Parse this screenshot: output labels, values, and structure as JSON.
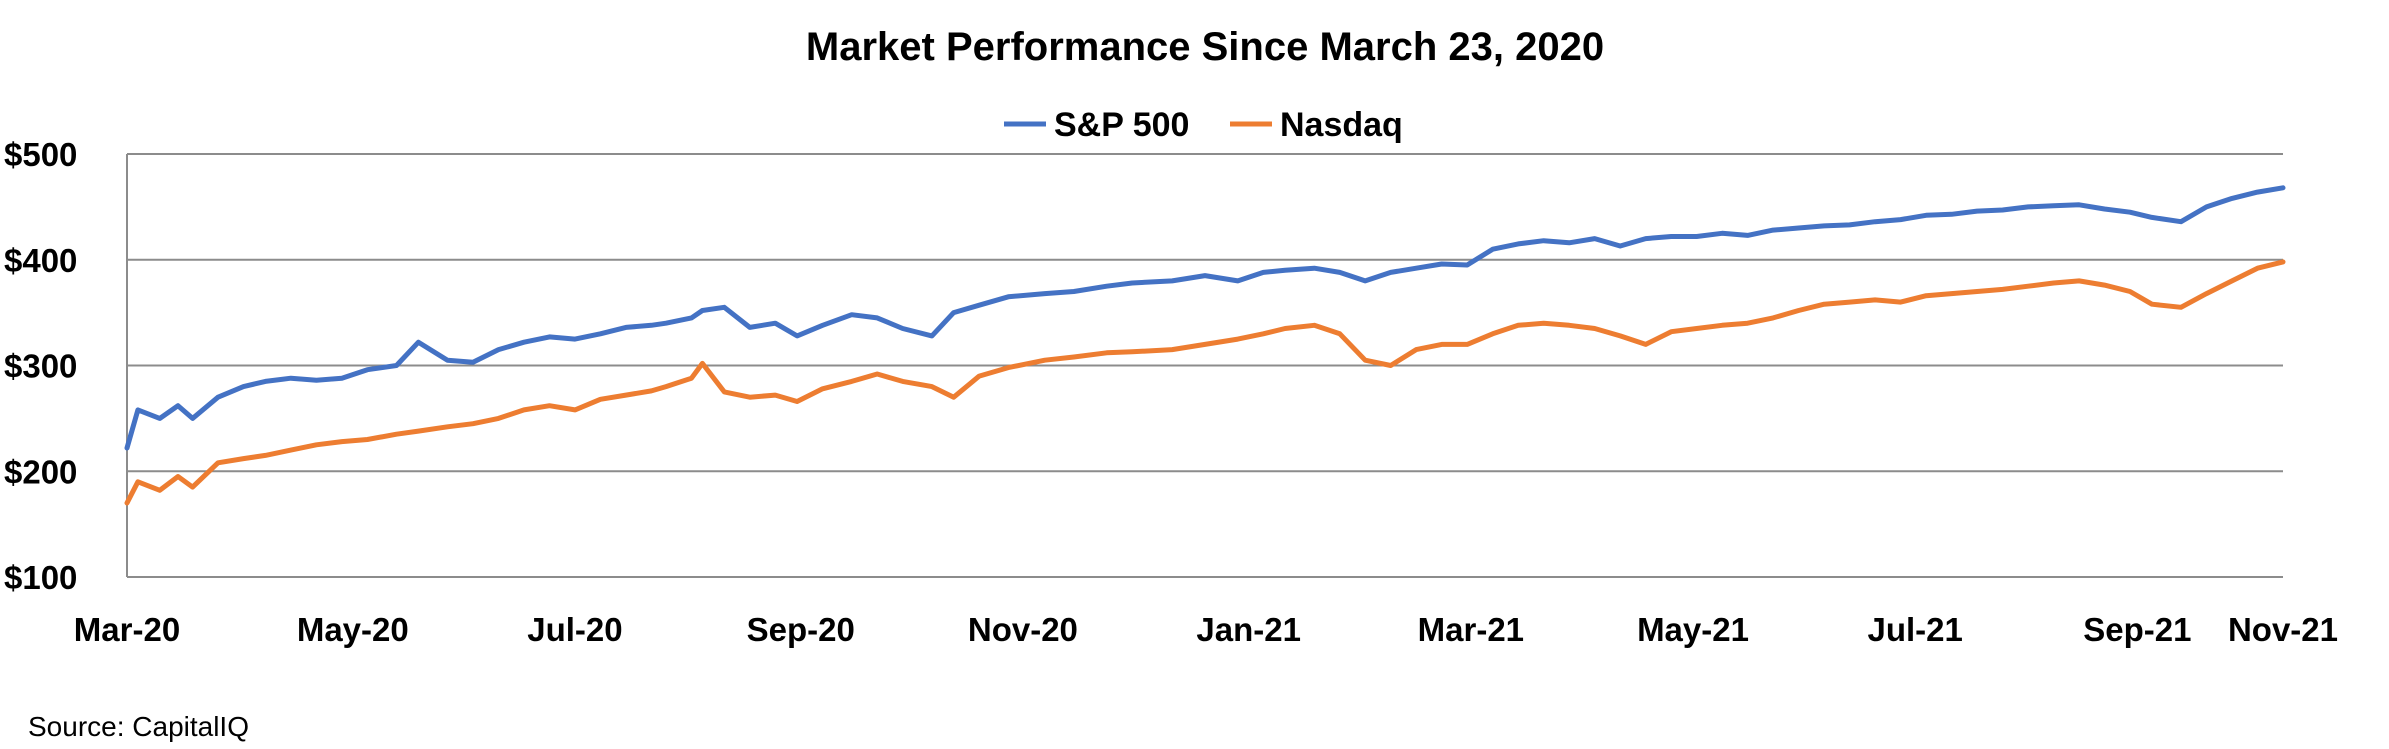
{
  "chart_data": {
    "type": "line",
    "title": "Market Performance Since March 23, 2020",
    "source": "Source: CapitalIQ",
    "legend_position": "top-center",
    "grid": true,
    "ylim": [
      100,
      500
    ],
    "y_ticks": [
      100,
      200,
      300,
      400,
      500
    ],
    "y_tick_labels": [
      "$100",
      "$200",
      "$300",
      "$400",
      "$500"
    ],
    "x_tick_labels": [
      "Mar-20",
      "May-20",
      "Jul-20",
      "Sep-20",
      "Nov-20",
      "Jan-21",
      "Mar-21",
      "May-21",
      "Jul-21",
      "Sep-21",
      "Nov-21"
    ],
    "x_range": [
      "2020-03-23",
      "2021-11-05"
    ],
    "x_ticks": [
      "2020-03-23",
      "2020-05-24",
      "2020-07-24",
      "2020-09-24",
      "2020-11-24",
      "2021-01-25",
      "2021-03-27",
      "2021-05-27",
      "2021-07-27",
      "2021-09-26",
      "2021-11-05"
    ],
    "series": [
      {
        "name": "S&P 500",
        "color": "#4472c4",
        "x": [
          "2020-03-23",
          "2020-03-26",
          "2020-04-01",
          "2020-04-06",
          "2020-04-10",
          "2020-04-17",
          "2020-04-24",
          "2020-04-30",
          "2020-05-07",
          "2020-05-14",
          "2020-05-21",
          "2020-05-28",
          "2020-06-05",
          "2020-06-11",
          "2020-06-19",
          "2020-06-26",
          "2020-07-03",
          "2020-07-10",
          "2020-07-17",
          "2020-07-24",
          "2020-07-31",
          "2020-08-07",
          "2020-08-14",
          "2020-08-18",
          "2020-08-25",
          "2020-08-28",
          "2020-09-03",
          "2020-09-10",
          "2020-09-17",
          "2020-09-23",
          "2020-09-30",
          "2020-10-08",
          "2020-10-15",
          "2020-10-22",
          "2020-10-30",
          "2020-11-05",
          "2020-11-12",
          "2020-11-20",
          "2020-11-30",
          "2020-12-08",
          "2020-12-17",
          "2020-12-24",
          "2021-01-04",
          "2021-01-13",
          "2021-01-22",
          "2021-01-29",
          "2021-02-04",
          "2021-02-12",
          "2021-02-19",
          "2021-02-26",
          "2021-03-05",
          "2021-03-12",
          "2021-03-19",
          "2021-03-26",
          "2021-04-02",
          "2021-04-09",
          "2021-04-16",
          "2021-04-23",
          "2021-04-30",
          "2021-05-07",
          "2021-05-14",
          "2021-05-21",
          "2021-05-28",
          "2021-06-04",
          "2021-06-11",
          "2021-06-18",
          "2021-06-25",
          "2021-07-02",
          "2021-07-09",
          "2021-07-16",
          "2021-07-23",
          "2021-07-30",
          "2021-08-06",
          "2021-08-13",
          "2021-08-20",
          "2021-08-27",
          "2021-09-03",
          "2021-09-10",
          "2021-09-17",
          "2021-09-24",
          "2021-09-30",
          "2021-10-08",
          "2021-10-15",
          "2021-10-22",
          "2021-10-29",
          "2021-11-05"
        ],
        "y": [
          222,
          258,
          250,
          262,
          250,
          270,
          280,
          285,
          288,
          286,
          288,
          296,
          300,
          322,
          305,
          303,
          315,
          322,
          327,
          325,
          330,
          336,
          338,
          340,
          345,
          352,
          355,
          336,
          340,
          328,
          338,
          348,
          345,
          335,
          328,
          350,
          357,
          365,
          368,
          370,
          375,
          378,
          380,
          385,
          380,
          388,
          390,
          392,
          388,
          380,
          388,
          392,
          396,
          395,
          410,
          415,
          418,
          416,
          420,
          413,
          420,
          422,
          422,
          425,
          423,
          428,
          430,
          432,
          433,
          436,
          438,
          442,
          443,
          446,
          447,
          450,
          451,
          452,
          448,
          445,
          440,
          436,
          450,
          458,
          464,
          468
        ]
      },
      {
        "name": "Nasdaq",
        "color": "#ed7d31",
        "x": [
          "2020-03-23",
          "2020-03-26",
          "2020-04-01",
          "2020-04-06",
          "2020-04-10",
          "2020-04-17",
          "2020-04-24",
          "2020-04-30",
          "2020-05-07",
          "2020-05-14",
          "2020-05-21",
          "2020-05-28",
          "2020-06-05",
          "2020-06-11",
          "2020-06-19",
          "2020-06-26",
          "2020-07-03",
          "2020-07-10",
          "2020-07-17",
          "2020-07-24",
          "2020-07-31",
          "2020-08-07",
          "2020-08-14",
          "2020-08-18",
          "2020-08-25",
          "2020-08-28",
          "2020-09-03",
          "2020-09-10",
          "2020-09-17",
          "2020-09-23",
          "2020-09-30",
          "2020-10-08",
          "2020-10-15",
          "2020-10-22",
          "2020-10-30",
          "2020-11-05",
          "2020-11-12",
          "2020-11-20",
          "2020-11-30",
          "2020-12-08",
          "2020-12-17",
          "2020-12-24",
          "2021-01-04",
          "2021-01-13",
          "2021-01-22",
          "2021-01-29",
          "2021-02-04",
          "2021-02-12",
          "2021-02-19",
          "2021-02-26",
          "2021-03-05",
          "2021-03-12",
          "2021-03-19",
          "2021-03-26",
          "2021-04-02",
          "2021-04-09",
          "2021-04-16",
          "2021-04-23",
          "2021-04-30",
          "2021-05-07",
          "2021-05-14",
          "2021-05-21",
          "2021-05-28",
          "2021-06-04",
          "2021-06-11",
          "2021-06-18",
          "2021-06-25",
          "2021-07-02",
          "2021-07-09",
          "2021-07-16",
          "2021-07-23",
          "2021-07-30",
          "2021-08-06",
          "2021-08-13",
          "2021-08-20",
          "2021-08-27",
          "2021-09-03",
          "2021-09-10",
          "2021-09-17",
          "2021-09-24",
          "2021-09-30",
          "2021-10-08",
          "2021-10-15",
          "2021-10-22",
          "2021-10-29",
          "2021-11-05"
        ],
        "y": [
          170,
          190,
          182,
          195,
          185,
          208,
          212,
          215,
          220,
          225,
          228,
          230,
          235,
          238,
          242,
          245,
          250,
          258,
          262,
          258,
          268,
          272,
          276,
          280,
          288,
          302,
          275,
          270,
          272,
          266,
          278,
          285,
          292,
          285,
          280,
          270,
          290,
          298,
          305,
          308,
          312,
          313,
          315,
          320,
          325,
          330,
          335,
          338,
          330,
          305,
          300,
          315,
          320,
          320,
          330,
          338,
          340,
          338,
          335,
          328,
          320,
          332,
          335,
          338,
          340,
          345,
          352,
          358,
          360,
          362,
          360,
          366,
          368,
          370,
          372,
          375,
          378,
          380,
          376,
          370,
          358,
          355,
          368,
          380,
          392,
          398
        ]
      }
    ]
  }
}
